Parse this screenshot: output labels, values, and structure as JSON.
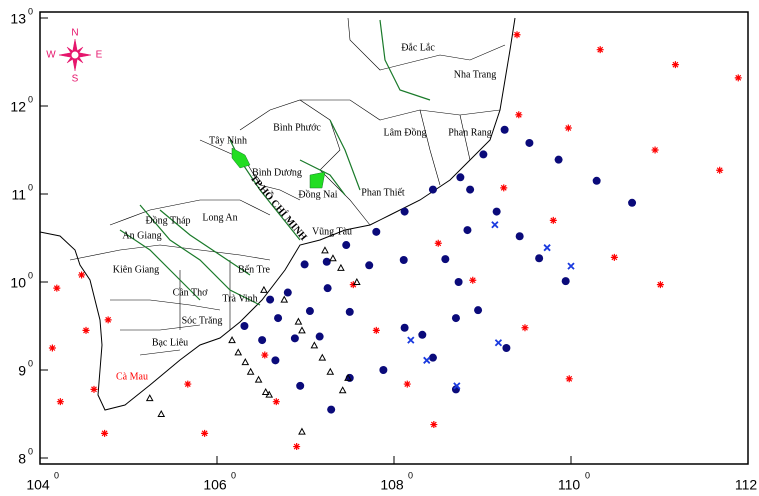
{
  "x_axis": {
    "lim": [
      104,
      112
    ],
    "ticks": [
      104,
      106,
      108,
      110,
      112
    ]
  },
  "y_axis": {
    "lim": [
      8,
      13
    ],
    "ticks": [
      8,
      9,
      10,
      11,
      12,
      13
    ]
  },
  "degree_mark": "0",
  "compass": {
    "north": "N",
    "south": "S",
    "west": "W",
    "east": "E"
  },
  "places": [
    {
      "label": "Đắc Lắc",
      "color": "#000000"
    },
    {
      "label": "Nha Trang",
      "color": "#000000"
    },
    {
      "label": "Bình Phước",
      "color": "#000000"
    },
    {
      "label": "Lâm Đồng",
      "color": "#000000"
    },
    {
      "label": "Phan Rang",
      "color": "#000000"
    },
    {
      "label": "Tây Ninh",
      "color": "#000000"
    },
    {
      "label": "Bình Dương",
      "color": "#000000"
    },
    {
      "label": "Đồng Nai",
      "color": "#000000"
    },
    {
      "label": "Phan Thiết",
      "color": "#000000"
    },
    {
      "label": "Đồng Tháp",
      "color": "#000000"
    },
    {
      "label": "Long An",
      "color": "#000000"
    },
    {
      "label": "An Giang",
      "color": "#000000"
    },
    {
      "label": "Vũng Tàu",
      "color": "#000000"
    },
    {
      "label": "Kiên Giang",
      "color": "#000000"
    },
    {
      "label": "Bến Tre",
      "color": "#000000"
    },
    {
      "label": "Cần Thơ",
      "color": "#000000"
    },
    {
      "label": "Trà Vinh",
      "color": "#000000"
    },
    {
      "label": "Sóc Trăng",
      "color": "#000000"
    },
    {
      "label": "Bạc Liêu",
      "color": "#000000"
    },
    {
      "label": "Cà Mau",
      "color": "#ff0000"
    },
    {
      "label": "TP.HỒ CHÍ MINH",
      "color": "#000000"
    }
  ],
  "markers": {
    "asterisk": {
      "color": "#ff0000",
      "points": [
        [
          109.39,
          12.81
        ],
        [
          110.33,
          12.64
        ],
        [
          111.18,
          12.47
        ],
        [
          111.89,
          12.32
        ],
        [
          109.41,
          11.9
        ],
        [
          109.97,
          11.75
        ],
        [
          110.95,
          11.5
        ],
        [
          111.68,
          11.27
        ],
        [
          109.24,
          11.07
        ],
        [
          109.8,
          10.7
        ],
        [
          108.5,
          10.44
        ],
        [
          110.49,
          10.28
        ],
        [
          108.89,
          10.02
        ],
        [
          111.01,
          9.97
        ],
        [
          107.54,
          9.97
        ],
        [
          104.19,
          9.93
        ],
        [
          104.47,
          10.08
        ],
        [
          104.52,
          9.45
        ],
        [
          104.77,
          9.57
        ],
        [
          109.48,
          9.48
        ],
        [
          104.14,
          9.25
        ],
        [
          107.8,
          9.45
        ],
        [
          106.54,
          9.17
        ],
        [
          108.15,
          8.84
        ],
        [
          109.98,
          8.9
        ],
        [
          105.67,
          8.84
        ],
        [
          104.61,
          8.78
        ],
        [
          104.23,
          8.64
        ],
        [
          106.67,
          8.64
        ],
        [
          108.45,
          8.38
        ],
        [
          104.73,
          8.28
        ],
        [
          105.86,
          8.28
        ],
        [
          106.9,
          8.13
        ]
      ]
    },
    "dot": {
      "color": "#0a0a7a",
      "points": [
        [
          109.25,
          11.73
        ],
        [
          109.53,
          11.58
        ],
        [
          109.86,
          11.39
        ],
        [
          110.29,
          11.15
        ],
        [
          110.69,
          10.9
        ],
        [
          109.01,
          11.45
        ],
        [
          108.75,
          11.19
        ],
        [
          108.44,
          11.05
        ],
        [
          108.12,
          10.8
        ],
        [
          107.8,
          10.57
        ],
        [
          107.46,
          10.42
        ],
        [
          108.86,
          11.05
        ],
        [
          109.16,
          10.8
        ],
        [
          108.83,
          10.59
        ],
        [
          109.42,
          10.52
        ],
        [
          109.64,
          10.27
        ],
        [
          109.94,
          10.01
        ],
        [
          108.58,
          10.26
        ],
        [
          108.11,
          10.25
        ],
        [
          107.72,
          10.19
        ],
        [
          106.99,
          10.2
        ],
        [
          107.25,
          9.93
        ],
        [
          106.8,
          9.88
        ],
        [
          106.6,
          9.8
        ],
        [
          106.31,
          9.5
        ],
        [
          106.51,
          9.34
        ],
        [
          106.69,
          9.59
        ],
        [
          107.05,
          9.67
        ],
        [
          107.5,
          9.66
        ],
        [
          107.16,
          9.38
        ],
        [
          106.88,
          9.36
        ],
        [
          106.66,
          9.11
        ],
        [
          106.94,
          8.82
        ],
        [
          107.29,
          8.55
        ],
        [
          107.5,
          8.91
        ],
        [
          107.88,
          9.0
        ],
        [
          108.12,
          9.48
        ],
        [
          108.32,
          9.4
        ],
        [
          108.7,
          9.59
        ],
        [
          108.95,
          9.68
        ],
        [
          109.27,
          9.25
        ],
        [
          108.44,
          9.14
        ],
        [
          108.7,
          8.78
        ],
        [
          108.73,
          10.0
        ],
        [
          107.24,
          10.23
        ]
      ]
    },
    "cross": {
      "color": "#1a3adf",
      "points": [
        [
          109.14,
          10.65
        ],
        [
          109.73,
          10.39
        ],
        [
          110.0,
          10.18
        ],
        [
          108.19,
          9.34
        ],
        [
          109.18,
          9.31
        ],
        [
          108.37,
          9.11
        ],
        [
          108.71,
          8.82
        ]
      ]
    },
    "triangle": {
      "color": "#000000",
      "points": [
        [
          107.22,
          10.36
        ],
        [
          107.31,
          10.27
        ],
        [
          107.4,
          10.16
        ],
        [
          107.58,
          10.0
        ],
        [
          106.53,
          9.91
        ],
        [
          106.76,
          9.8
        ],
        [
          106.92,
          9.55
        ],
        [
          106.96,
          9.45
        ],
        [
          107.1,
          9.28
        ],
        [
          107.19,
          9.14
        ],
        [
          107.28,
          8.98
        ],
        [
          107.48,
          8.91
        ],
        [
          106.17,
          9.34
        ],
        [
          106.24,
          9.2
        ],
        [
          106.32,
          9.09
        ],
        [
          106.38,
          8.98
        ],
        [
          106.47,
          8.89
        ],
        [
          106.55,
          8.75
        ],
        [
          105.24,
          8.68
        ],
        [
          105.37,
          8.5
        ],
        [
          107.42,
          8.77
        ],
        [
          106.96,
          8.3
        ],
        [
          106.59,
          8.72
        ]
      ]
    }
  }
}
